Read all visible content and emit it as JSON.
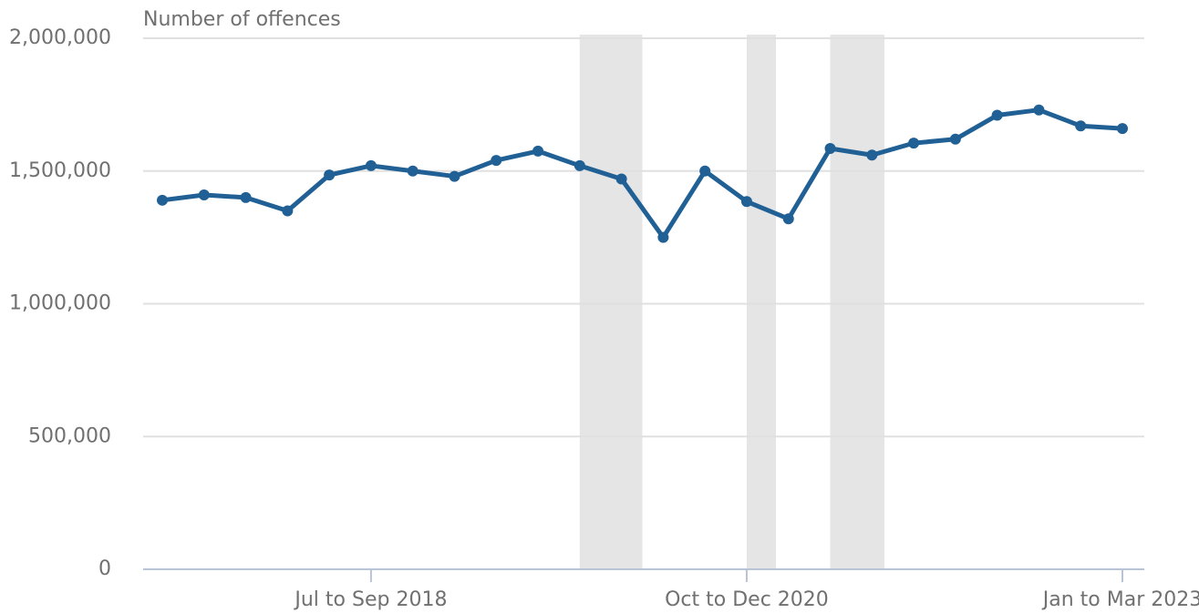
{
  "chart_data": {
    "type": "line",
    "y_axis_title": "Number of offences",
    "categories": [
      null,
      null,
      null,
      null,
      null,
      "Jul to Sep 2018",
      null,
      null,
      null,
      null,
      null,
      null,
      null,
      null,
      "Oct to Dec 2020",
      null,
      null,
      null,
      null,
      null,
      null,
      null,
      null,
      "Jan to Mar 2023"
    ],
    "series": [
      {
        "color": "#206095",
        "values": [
          1390000,
          1410000,
          1400000,
          1350000,
          1485000,
          1520000,
          1500000,
          1480000,
          1540000,
          1575000,
          1520000,
          1470000,
          1250000,
          1500000,
          1385000,
          1320000,
          1585000,
          1560000,
          1605000,
          1620000,
          1710000,
          1730000,
          1670000,
          1660000
        ]
      }
    ],
    "shaded_ranges": [
      [
        10,
        11.5
      ],
      [
        14,
        14.7
      ],
      [
        16,
        17.3
      ]
    ],
    "shade_color": "#e5e5e5",
    "ylim": [
      0,
      2000000
    ],
    "yticks": [
      0,
      {
        "value": 500000,
        "label": "500,000"
      },
      {
        "value": 1000000,
        "label": "1,000,000"
      },
      {
        "value": 1500000,
        "label": "1,500,000"
      },
      {
        "value": 2000000,
        "label": "2,000,000"
      }
    ],
    "grid": true
  }
}
